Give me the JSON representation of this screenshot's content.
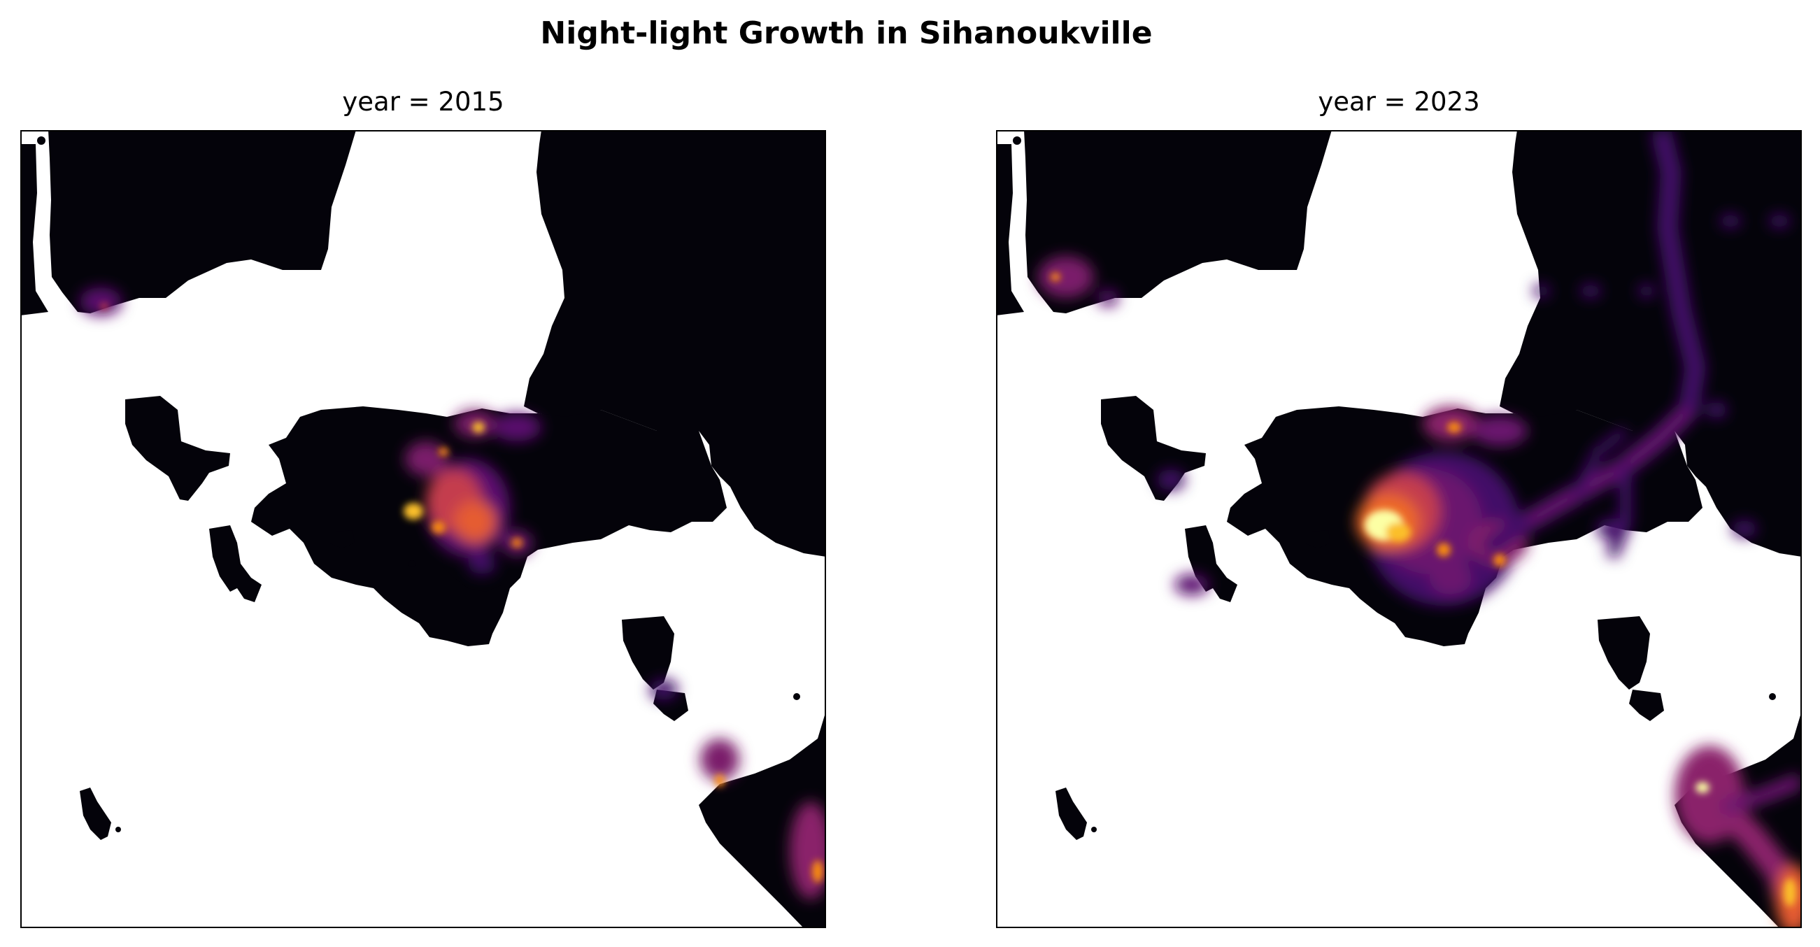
{
  "figure": {
    "title": "Night-light Growth in Sihanoukville"
  },
  "colors": {
    "land": "#04030a",
    "sea": "#ffffff",
    "frame": "#000000",
    "colormap": "inferno"
  },
  "panels": [
    {
      "id": "left",
      "title": "year = 2015"
    },
    {
      "id": "right",
      "title": "year = 2023"
    }
  ]
}
